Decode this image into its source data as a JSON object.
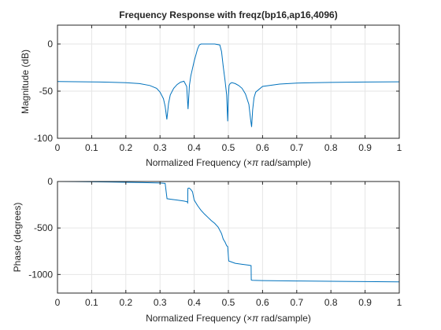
{
  "chart_data": [
    {
      "type": "line",
      "title": "Frequency Response with freqz(bp16,ap16,4096)",
      "xlabel_prefix": "Normalized Frequency  (",
      "xlabel_symbol": "×π",
      "xlabel_suffix": " rad/sample)",
      "ylabel": "Magnitude (dB)",
      "xlim": [
        0,
        1
      ],
      "ylim": [
        -100,
        20
      ],
      "xticks": [
        "0",
        "0.1",
        "0.2",
        "0.3",
        "0.4",
        "0.5",
        "0.6",
        "0.7",
        "0.8",
        "0.9",
        "1"
      ],
      "yticks": [
        "-100",
        "-50",
        "0"
      ],
      "grid": true,
      "color": "#0072BD",
      "x": [
        0,
        0.05,
        0.1,
        0.15,
        0.2,
        0.24,
        0.27,
        0.29,
        0.3,
        0.31,
        0.315,
        0.32,
        0.325,
        0.33,
        0.34,
        0.35,
        0.36,
        0.37,
        0.378,
        0.382,
        0.386,
        0.39,
        0.4,
        0.41,
        0.415,
        0.42,
        0.44,
        0.46,
        0.475,
        0.48,
        0.485,
        0.49,
        0.495,
        0.498,
        0.5,
        0.502,
        0.505,
        0.51,
        0.52,
        0.53,
        0.54,
        0.55,
        0.56,
        0.565,
        0.568,
        0.571,
        0.575,
        0.58,
        0.6,
        0.65,
        0.7,
        0.75,
        0.8,
        0.85,
        0.9,
        0.95,
        1
      ],
      "values": [
        -39.8,
        -40,
        -40.2,
        -40.5,
        -41,
        -42,
        -44,
        -47,
        -51,
        -58,
        -66,
        -80,
        -63,
        -54,
        -47,
        -43,
        -40.5,
        -39.5,
        -45,
        -69,
        -44,
        -34,
        -18,
        -5,
        -1,
        0,
        0,
        0,
        -1,
        -8,
        -24,
        -38,
        -54,
        -82,
        -56,
        -44,
        -42,
        -41,
        -42,
        -44,
        -47,
        -53,
        -64,
        -80,
        -88,
        -70,
        -57,
        -51,
        -45,
        -42.5,
        -41.5,
        -41,
        -40.7,
        -40.5,
        -40.3,
        -40.2,
        -40.1
      ]
    },
    {
      "type": "line",
      "xlabel_prefix": "Normalized Frequency  (",
      "xlabel_symbol": "×π",
      "xlabel_suffix": " rad/sample)",
      "ylabel": "Phase (degrees)",
      "xlim": [
        0,
        1
      ],
      "ylim": [
        -1200,
        0
      ],
      "xticks": [
        "0",
        "0.1",
        "0.2",
        "0.3",
        "0.4",
        "0.5",
        "0.6",
        "0.7",
        "0.8",
        "0.9",
        "1"
      ],
      "yticks": [
        "-1000",
        "-500",
        "0"
      ],
      "grid": true,
      "color": "#0072BD",
      "x": [
        0,
        0.05,
        0.1,
        0.15,
        0.2,
        0.25,
        0.3,
        0.315,
        0.3205,
        0.33,
        0.35,
        0.37,
        0.3795,
        0.38,
        0.381,
        0.3815,
        0.385,
        0.39,
        0.395,
        0.4,
        0.41,
        0.42,
        0.43,
        0.44,
        0.45,
        0.46,
        0.47,
        0.48,
        0.485,
        0.49,
        0.495,
        0.498,
        0.501,
        0.505,
        0.52,
        0.54,
        0.56,
        0.5665,
        0.567,
        0.57,
        0.6,
        0.7,
        0.8,
        0.9,
        1
      ],
      "values": [
        0,
        -1,
        -3,
        -5,
        -8,
        -12,
        -16,
        -20,
        -185,
        -190,
        -200,
        -210,
        -218,
        -222,
        -228,
        -75,
        -70,
        -85,
        -110,
        -200,
        -260,
        -310,
        -350,
        -385,
        -420,
        -450,
        -490,
        -560,
        -620,
        -650,
        -690,
        -700,
        -855,
        -860,
        -880,
        -890,
        -900,
        -905,
        -1060,
        -1063,
        -1066,
        -1070,
        -1073,
        -1076,
        -1080
      ]
    }
  ]
}
